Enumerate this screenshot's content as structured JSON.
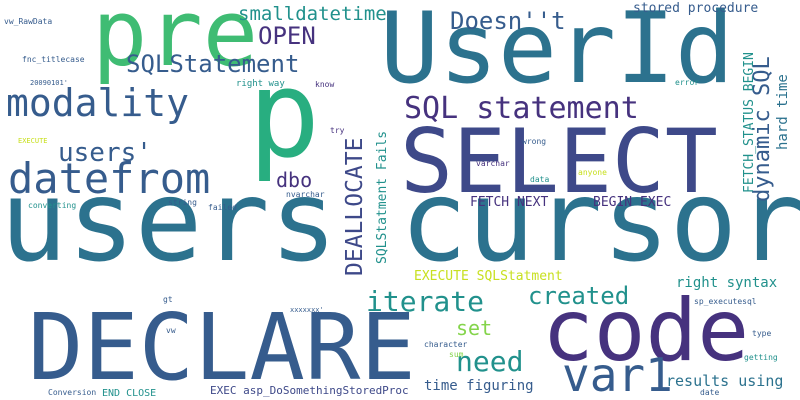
{
  "palette": {
    "dark_purple": "#46327e",
    "indigo": "#3e4989",
    "slate_blue": "#365c8d",
    "teal_blue": "#2c728e",
    "teal": "#21918c",
    "sea_green": "#28ae80",
    "green": "#3fbc73",
    "light_green": "#5ec962",
    "lime": "#84d44b",
    "yellow": "#c8e020"
  },
  "words": [
    "users",
    "cursor",
    "DECLARE",
    "SELECT",
    "UserId",
    "code",
    "p",
    "pre",
    "modality",
    "datefrom",
    "var1",
    "SQL statement",
    "SQLStatement",
    "created",
    "iterate",
    "need",
    "users'",
    "OPEN",
    "Doesn''t",
    "smalldatetime",
    "DEALLOCATE",
    "dynamic SQL",
    "dbo",
    "set",
    "results using",
    "time figuring",
    "right syntax",
    "stored procedure",
    "FETCH NEXT",
    "BEGIN EXEC",
    "EXECUTE SQLStatment",
    "FETCH_STATUS BEGIN",
    "hard time",
    "SQLStatment Fails",
    "EXEC asp_DoSomethingStoredProc",
    "END CLOSE",
    "vw_RawData",
    "fnc_titlecase",
    "20090101'",
    "EXECUTE",
    "converting",
    "string",
    "failed",
    "nvarchar",
    "varchar",
    "data",
    "anyone",
    "wrong",
    "try",
    "know",
    "right way",
    "error",
    "sp_executesql",
    "type",
    "getting",
    "date",
    "character",
    "sum",
    "Conversion",
    "xxxxxxx'",
    "gt",
    "vw"
  ]
}
